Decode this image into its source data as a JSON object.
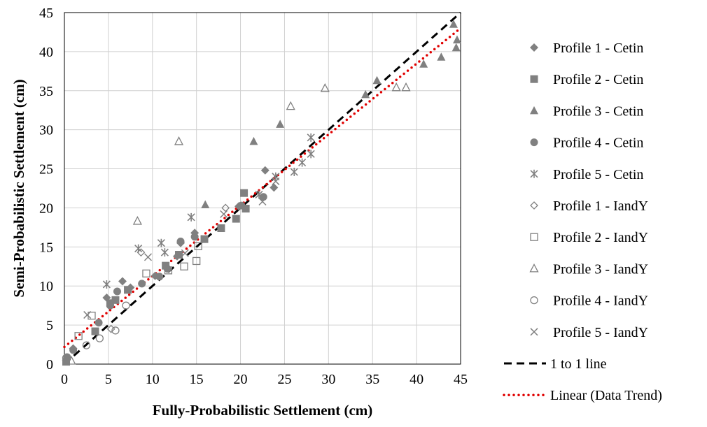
{
  "chart_data": {
    "type": "scatter",
    "xlabel": "Fully-Probabilistic Settlement (cm)",
    "ylabel": "Semi-Probabilistic Settlement (cm)",
    "xlim": [
      0,
      45
    ],
    "ylim": [
      0,
      45
    ],
    "xticks": [
      0,
      5,
      10,
      15,
      20,
      25,
      30,
      35,
      40,
      45
    ],
    "yticks": [
      0,
      5,
      10,
      15,
      20,
      25,
      30,
      35,
      40,
      45
    ],
    "grid": true,
    "legend_position": "right",
    "series": [
      {
        "name": "Profile 1 - Cetin",
        "marker": "diamond-filled",
        "color": "#808080",
        "points": [
          [
            0.2,
            0.5
          ],
          [
            1,
            2
          ],
          [
            4.8,
            8.5
          ],
          [
            6.6,
            10.6
          ],
          [
            7.5,
            9.8
          ],
          [
            10.3,
            11.3
          ],
          [
            12.8,
            13.8
          ],
          [
            13.2,
            15.5
          ],
          [
            14.8,
            16.8
          ],
          [
            19.8,
            20.2
          ],
          [
            22.8,
            24.8
          ],
          [
            23.8,
            22.6
          ]
        ]
      },
      {
        "name": "Profile 2 - Cetin",
        "marker": "square-filled",
        "color": "#808080",
        "points": [
          [
            0.2,
            0.3
          ],
          [
            3.5,
            4.2
          ],
          [
            5.2,
            7.8
          ],
          [
            5.8,
            8.2
          ],
          [
            7.2,
            9.5
          ],
          [
            11.5,
            12.6
          ],
          [
            13.0,
            14.0
          ],
          [
            15.9,
            16.0
          ],
          [
            17.8,
            17.4
          ],
          [
            19.5,
            18.6
          ],
          [
            20.4,
            21.9
          ],
          [
            20.6,
            19.9
          ]
        ]
      },
      {
        "name": "Profile 3 - Cetin",
        "marker": "triangle-filled",
        "color": "#808080",
        "points": [
          [
            16.0,
            20.4
          ],
          [
            21.5,
            28.5
          ],
          [
            24.5,
            30.7
          ],
          [
            34.2,
            34.5
          ],
          [
            35.5,
            36.3
          ],
          [
            40.8,
            38.4
          ],
          [
            42.8,
            39.3
          ],
          [
            44.2,
            43.5
          ],
          [
            44.5,
            40.5
          ],
          [
            44.6,
            41.5
          ]
        ]
      },
      {
        "name": "Profile 4 - Cetin",
        "marker": "circle-filled",
        "color": "#808080",
        "points": [
          [
            0.3,
            0.9
          ],
          [
            1.0,
            1.8
          ],
          [
            3.9,
            5.3
          ],
          [
            5.2,
            7.5
          ],
          [
            6.0,
            9.3
          ],
          [
            8.8,
            10.3
          ],
          [
            10.8,
            11.2
          ],
          [
            11.7,
            12.2
          ],
          [
            13.2,
            15.7
          ],
          [
            14.8,
            16.3
          ],
          [
            20.1,
            20.3
          ],
          [
            22.6,
            21.4
          ]
        ]
      },
      {
        "name": "Profile 5 - Cetin",
        "marker": "asterisk",
        "color": "#808080",
        "points": [
          [
            4.8,
            10.2
          ],
          [
            8.4,
            14.8
          ],
          [
            11.0,
            15.5
          ],
          [
            11.4,
            14.3
          ],
          [
            14.4,
            18.8
          ],
          [
            22.1,
            21.7
          ],
          [
            24.0,
            24.0
          ],
          [
            26.1,
            24.6
          ],
          [
            27.0,
            25.8
          ],
          [
            28.0,
            26.9
          ],
          [
            28.0,
            29.0
          ]
        ]
      },
      {
        "name": "Profile 1 - IandY",
        "marker": "diamond-open",
        "color": "#808080",
        "points": [
          [
            8.7,
            14.3
          ],
          [
            18.3,
            20.0
          ],
          [
            5.3,
            4.5
          ]
        ]
      },
      {
        "name": "Profile 2 - IandY",
        "marker": "square-open",
        "color": "#808080",
        "points": [
          [
            1.6,
            3.6
          ],
          [
            3.1,
            6.2
          ],
          [
            9.3,
            11.6
          ],
          [
            11.8,
            12.0
          ],
          [
            13.6,
            12.5
          ],
          [
            15.0,
            13.2
          ],
          [
            15.2,
            15.1
          ]
        ]
      },
      {
        "name": "Profile 3 - IandY",
        "marker": "triangle-open",
        "color": "#808080",
        "points": [
          [
            8.3,
            18.3
          ],
          [
            13.0,
            28.5
          ],
          [
            25.7,
            33.0
          ],
          [
            29.6,
            35.3
          ],
          [
            37.7,
            35.4
          ],
          [
            38.8,
            35.4
          ],
          [
            0.8,
            0.4
          ]
        ]
      },
      {
        "name": "Profile 4 - IandY",
        "marker": "circle-open",
        "color": "#808080",
        "points": [
          [
            0.2,
            0.8
          ],
          [
            2.5,
            2.4
          ],
          [
            4.0,
            3.3
          ],
          [
            5.8,
            4.3
          ],
          [
            7.0,
            7.5
          ]
        ]
      },
      {
        "name": "Profile 5 - IandY",
        "marker": "x",
        "color": "#808080",
        "points": [
          [
            2.6,
            6.3
          ],
          [
            9.5,
            13.7
          ],
          [
            13.7,
            14.2
          ],
          [
            22.5,
            20.8
          ],
          [
            24.0,
            23.4
          ],
          [
            18.1,
            19.2
          ]
        ]
      }
    ],
    "lines": [
      {
        "name": "1 to 1 line",
        "style": "dashed",
        "color": "#000000",
        "points": [
          [
            0,
            0
          ],
          [
            45,
            45
          ]
        ]
      },
      {
        "name": "Linear (Data Trend)",
        "style": "dotted",
        "color": "#e00000",
        "points": [
          [
            0,
            2.2
          ],
          [
            45,
            43.0
          ]
        ]
      }
    ]
  }
}
